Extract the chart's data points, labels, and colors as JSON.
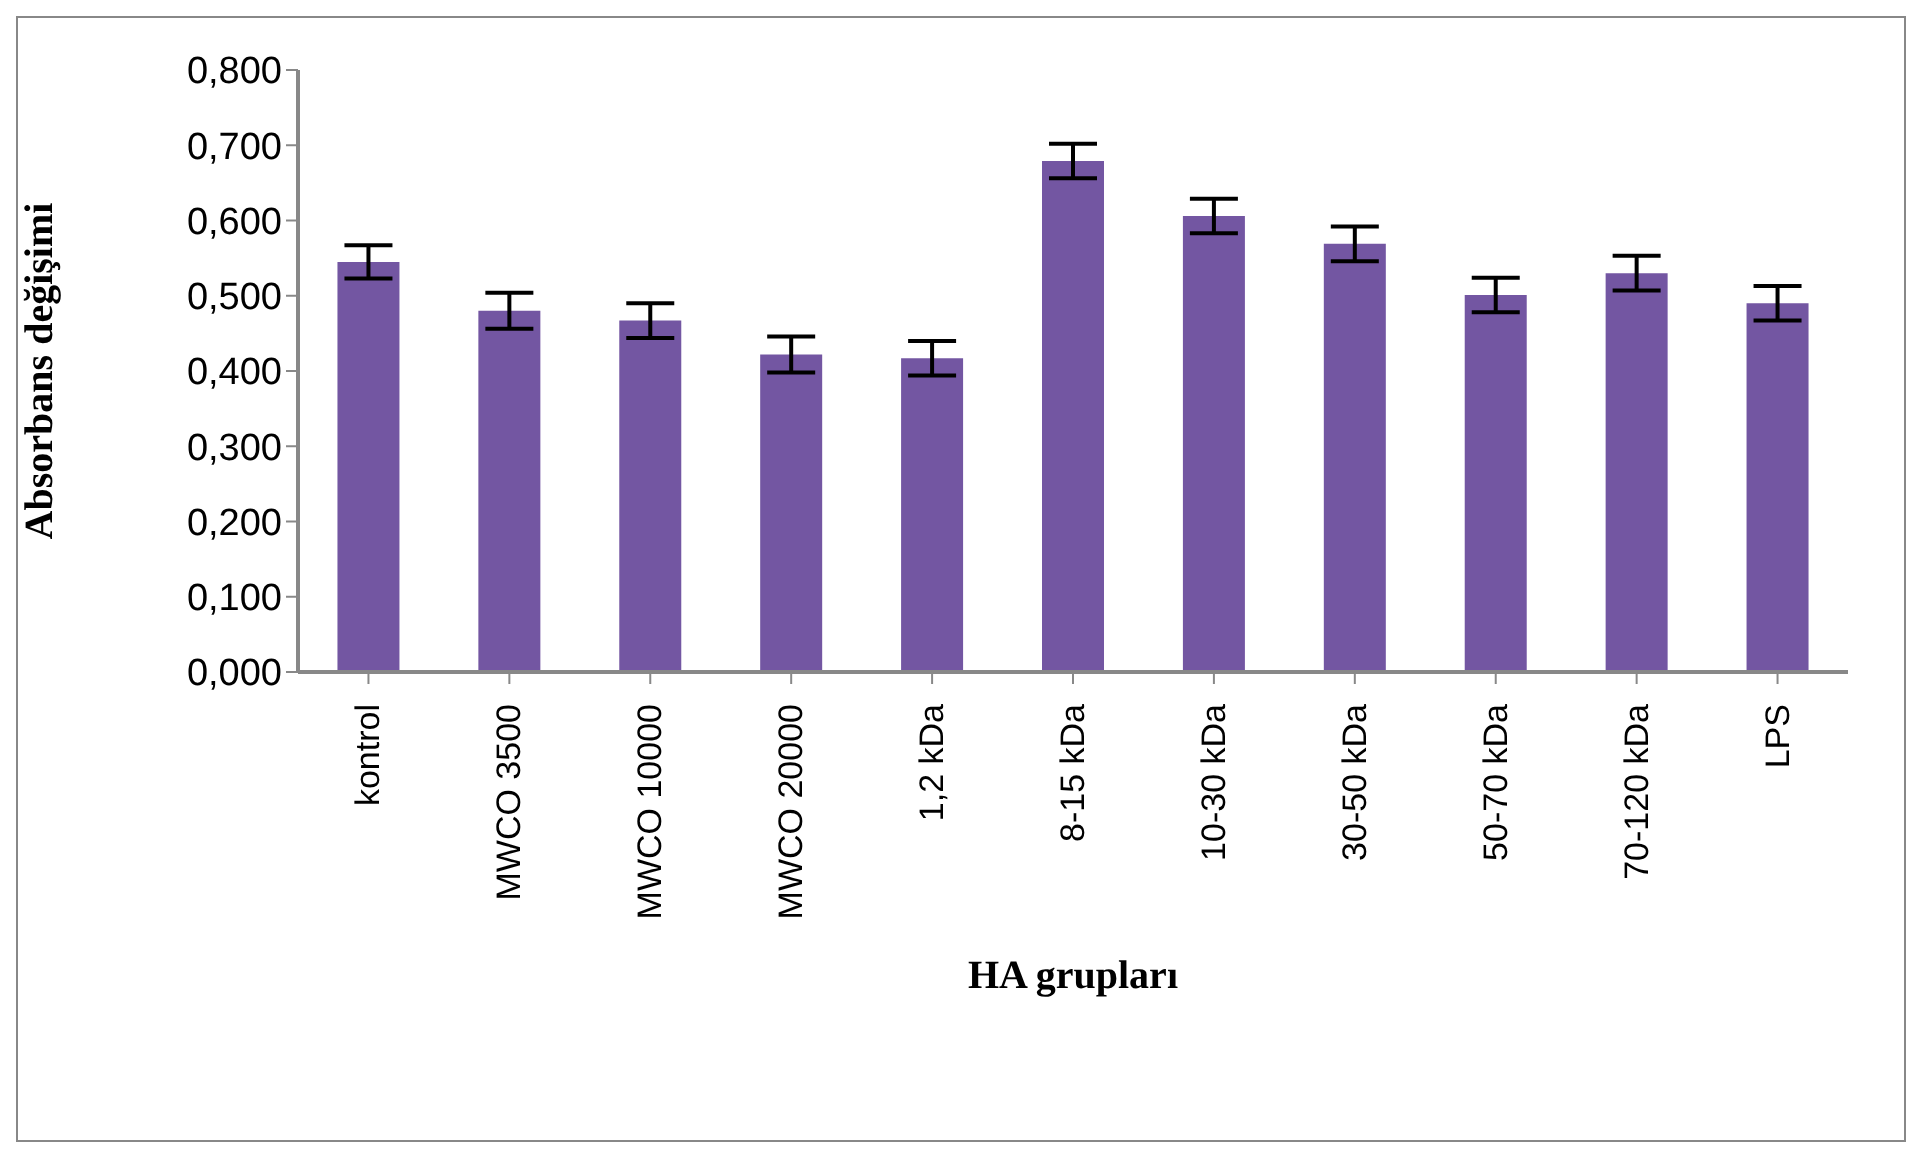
{
  "chart_data": {
    "type": "bar",
    "xlabel": "HA grupları",
    "ylabel": "Absorbans değişimi",
    "categories": [
      "kontrol",
      "MWCO 3500",
      "MWCO 10000",
      "MWCO 20000",
      "1,2 kDa",
      "8-15 kDa",
      "10-30 kDa",
      "30-50 kDa",
      "50-70 kDa",
      "70-120 kDa",
      "LPS"
    ],
    "values": [
      0.545,
      0.48,
      0.467,
      0.422,
      0.417,
      0.679,
      0.606,
      0.569,
      0.501,
      0.53,
      0.49
    ],
    "errors": [
      0.022,
      0.024,
      0.023,
      0.024,
      0.023,
      0.023,
      0.023,
      0.023,
      0.023,
      0.023,
      0.023
    ],
    "color": "#7356a2",
    "ylim": [
      0,
      0.8
    ],
    "yticks": [
      {
        "value": 0,
        "label": "0,000"
      },
      {
        "value": 0.1,
        "label": "0,100"
      },
      {
        "value": 0.2,
        "label": "0,200"
      },
      {
        "value": 0.3,
        "label": "0,300"
      },
      {
        "value": 0.4,
        "label": "0,400"
      },
      {
        "value": 0.5,
        "label": "0,500"
      },
      {
        "value": 0.6,
        "label": "0,600"
      },
      {
        "value": 0.7,
        "label": "0,700"
      },
      {
        "value": 0.8,
        "label": "0,800"
      }
    ],
    "grid": false,
    "legend": false
  }
}
